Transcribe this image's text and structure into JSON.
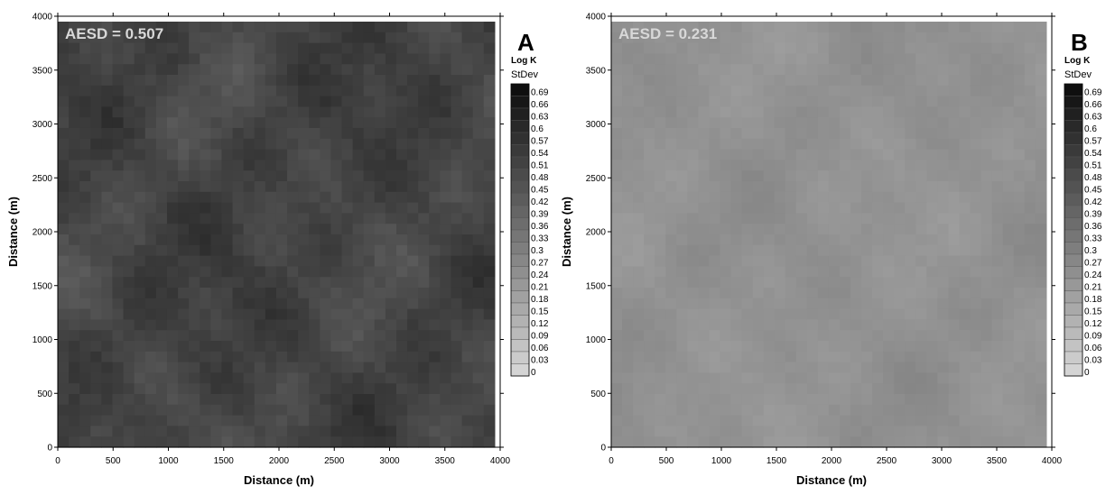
{
  "chart_data": [
    {
      "type": "heatmap",
      "panel_letter": "A",
      "annotation": "AESD = 0.507",
      "mean_value": 0.507,
      "xlabel": "Distance (m)",
      "ylabel": "Distance (m)",
      "xlim": [
        0,
        4000
      ],
      "ylim": [
        0,
        4000
      ],
      "x_ticks": [
        "0",
        "500",
        "1000",
        "1500",
        "2000",
        "2500",
        "3000",
        "3500",
        "4000"
      ],
      "y_ticks": [
        "0",
        "500",
        "1000",
        "1500",
        "2000",
        "2500",
        "3000",
        "3500",
        "4000"
      ],
      "legend": {
        "title": "Log K",
        "subtitle": "StDev",
        "levels": [
          "0.69",
          "0.66",
          "0.63",
          "0.6",
          "0.57",
          "0.54",
          "0.51",
          "0.48",
          "0.45",
          "0.42",
          "0.39",
          "0.36",
          "0.33",
          "0.3",
          "0.27",
          "0.24",
          "0.21",
          "0.18",
          "0.15",
          "0.12",
          "0.09",
          "0.06",
          "0.03",
          "0"
        ],
        "placement": "right"
      },
      "colors": {
        "low": "#d4d4d4",
        "high": "#0c0c0c"
      }
    },
    {
      "type": "heatmap",
      "panel_letter": "B",
      "annotation": "AESD = 0.231",
      "mean_value": 0.231,
      "xlabel": "Distance (m)",
      "ylabel": "Distance (m)",
      "xlim": [
        0,
        4000
      ],
      "ylim": [
        0,
        4000
      ],
      "x_ticks": [
        "0",
        "500",
        "1000",
        "1500",
        "2000",
        "2500",
        "3000",
        "3500",
        "4000"
      ],
      "y_ticks": [
        "0",
        "500",
        "1000",
        "1500",
        "2000",
        "2500",
        "3000",
        "3500",
        "4000"
      ],
      "legend": {
        "title": "Log K",
        "subtitle": "StDev",
        "levels": [
          "0.69",
          "0.66",
          "0.63",
          "0.6",
          "0.57",
          "0.54",
          "0.51",
          "0.48",
          "0.45",
          "0.42",
          "0.39",
          "0.36",
          "0.33",
          "0.3",
          "0.27",
          "0.24",
          "0.21",
          "0.18",
          "0.15",
          "0.12",
          "0.09",
          "0.06",
          "0.03",
          "0"
        ],
        "placement": "right"
      },
      "colors": {
        "low": "#d4d4d4",
        "high": "#0c0c0c"
      }
    }
  ]
}
